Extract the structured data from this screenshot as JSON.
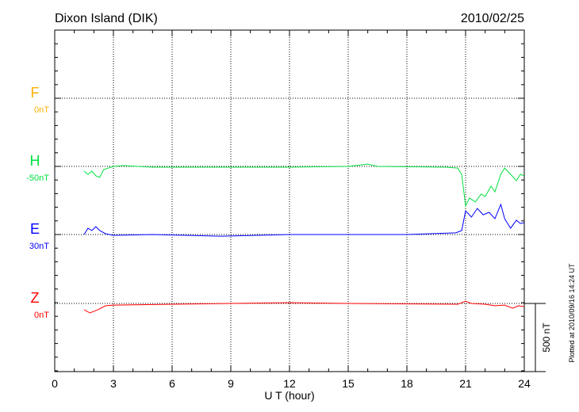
{
  "chart_data": {
    "type": "line",
    "title": "Dixon Island (DIK)",
    "date": "2010/02/25",
    "xlabel": "U T (hour)",
    "xlim": [
      0,
      24
    ],
    "xticks": [
      "0",
      "3",
      "6",
      "9",
      "12",
      "15",
      "18",
      "21",
      "24"
    ],
    "scale_label": "500 nT",
    "scale_nT": 500,
    "plotted_note": "Plotted at 2010/09/16 14:24 UT",
    "grid": true,
    "series": [
      {
        "name": "F",
        "baseline_label": "0nT",
        "color": "#ffb000",
        "x": [],
        "y": []
      },
      {
        "name": "H",
        "baseline_label": "-50nT",
        "color": "#00e040",
        "x": [
          1.5,
          1.7,
          1.9,
          2.1,
          2.3,
          2.5,
          3,
          3.5,
          5,
          8,
          12,
          15,
          16,
          16.5,
          20,
          20.6,
          20.8,
          21,
          21.2,
          21.5,
          21.8,
          22,
          22.3,
          22.5,
          22.8,
          23,
          23.3,
          23.6,
          23.8,
          24
        ],
        "y": [
          -35,
          -58,
          -35,
          -70,
          -81,
          -23,
          0,
          6,
          -6,
          -6,
          -6,
          0,
          17,
          0,
          -6,
          -12,
          -58,
          -290,
          -232,
          -261,
          -203,
          -221,
          -145,
          -186,
          -58,
          -12,
          -58,
          -105,
          -58,
          -70
        ]
      },
      {
        "name": "E",
        "baseline_label": "30nT",
        "color": "#0000ff",
        "x": [
          1.5,
          1.7,
          1.9,
          2.1,
          2.3,
          2.6,
          3,
          5,
          8.5,
          12,
          18,
          20.5,
          20.8,
          21,
          21.3,
          21.6,
          21.9,
          22.2,
          22.5,
          22.8,
          23,
          23.3,
          23.6,
          23.8,
          24
        ],
        "y": [
          0,
          46,
          29,
          58,
          29,
          6,
          -6,
          0,
          -12,
          0,
          0,
          12,
          29,
          174,
          128,
          192,
          145,
          163,
          116,
          221,
          116,
          46,
          105,
          81,
          87
        ]
      },
      {
        "name": "Z",
        "baseline_label": "0nT",
        "color": "#ff0000",
        "x": [
          1.5,
          1.8,
          2.2,
          2.6,
          3,
          6,
          9,
          12,
          15,
          20.6,
          21,
          21.3,
          22,
          22.5,
          23,
          23.4,
          23.7,
          24
        ],
        "y": [
          -46,
          -70,
          -46,
          -17,
          -12,
          -6,
          0,
          6,
          0,
          -6,
          17,
          0,
          -6,
          -17,
          -12,
          -35,
          -17,
          -23
        ]
      }
    ]
  }
}
